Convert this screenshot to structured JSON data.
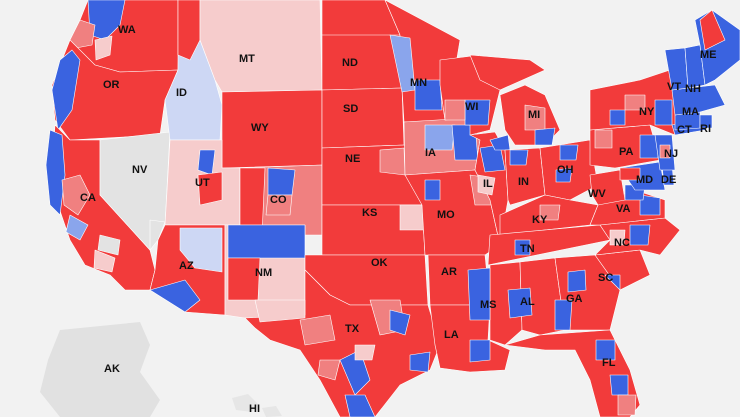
{
  "map": {
    "colors": {
      "solid_red": "#f23b3b",
      "lean_red": "#f08080",
      "light_red": "#f6cccc",
      "solid_blue": "#3a63e0",
      "lean_blue": "#8aa5ec",
      "light_blue": "#cdd7f4",
      "tossup": "#e3e3e3",
      "background": "#f2f2f2",
      "non_contiguous": "#e1e1e1"
    },
    "labels": {
      "WA": "WA",
      "OR": "OR",
      "CA": "CA",
      "NV": "NV",
      "ID": "ID",
      "MT": "MT",
      "WY": "WY",
      "UT": "UT",
      "AZ": "AZ",
      "CO": "CO",
      "NM": "NM",
      "ND": "ND",
      "SD": "SD",
      "NE": "NE",
      "KS": "KS",
      "OK": "OK",
      "TX": "TX",
      "MN": "MN",
      "IA": "IA",
      "MO": "MO",
      "AR": "AR",
      "LA": "LA",
      "WI": "WI",
      "IL": "IL",
      "MS": "MS",
      "MI": "MI",
      "IN": "IN",
      "KY": "KY",
      "TN": "TN",
      "AL": "AL",
      "OH": "OH",
      "GA": "GA",
      "FL": "FL",
      "SC": "SC",
      "NC": "NC",
      "VA": "VA",
      "WV": "WV",
      "PA": "PA",
      "NY": "NY",
      "MD": "MD",
      "DE": "DE",
      "NJ": "NJ",
      "CT": "CT",
      "RI": "RI",
      "MA": "MA",
      "VT": "VT",
      "NH": "NH",
      "ME": "ME",
      "AK": "AK",
      "HI": "HI"
    }
  }
}
